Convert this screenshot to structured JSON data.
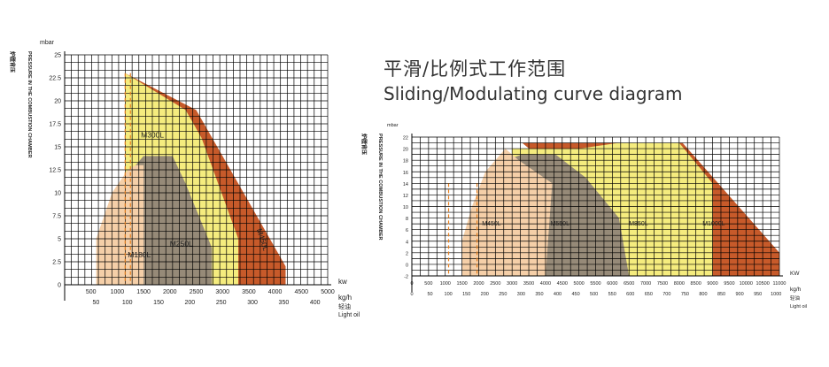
{
  "header": {
    "title_zh": "平滑/比例式工作范围",
    "title_en": "Sliding/Modulating curve diagram"
  },
  "chart_data": [
    {
      "type": "area",
      "title": "",
      "ylabel_unit": "mbar",
      "ylabel_zh": "炉膛背压",
      "ylabel_en": "PRESSURE IN THE COMBUSTION CHAMBER",
      "xlabel_kw": "kw",
      "xlabel_kgh": "kg/h",
      "xlabel_fuel_zh": "轻油",
      "xlabel_fuel_en": "Light oil",
      "xlim": [
        0,
        5000
      ],
      "ylim": [
        0,
        25
      ],
      "yticks": [
        "0",
        "2.5",
        "5",
        "7.5",
        "10",
        "12.5",
        "15",
        "17.5",
        "20",
        "22.5",
        "25"
      ],
      "xticks_kw": [
        "500",
        "1000",
        "1500",
        "2000",
        "2500",
        "3000",
        "3500",
        "4000",
        "4500",
        "5000"
      ],
      "xticks_kgh": [
        "50",
        "100",
        "150",
        "200",
        "250",
        "300",
        "350",
        "400"
      ],
      "grid": true,
      "series": [
        {
          "name": "M450L",
          "color": "#c75a2a",
          "points": [
            [
              1150,
              23
            ],
            [
              2500,
              19
            ],
            [
              3400,
              10
            ],
            [
              4200,
              2
            ],
            [
              4200,
              0
            ],
            [
              3300,
              0
            ],
            [
              2800,
              10
            ],
            [
              1150,
              23
            ]
          ]
        },
        {
          "name": "M300L",
          "color": "#f5ec7e",
          "points": [
            [
              1150,
              23
            ],
            [
              2300,
              19
            ],
            [
              2600,
              16
            ],
            [
              3300,
              5
            ],
            [
              3300,
              0
            ],
            [
              2800,
              0
            ],
            [
              1150,
              0
            ]
          ]
        },
        {
          "name": "M250L",
          "color": "#968a78",
          "points": [
            [
              1350,
              13
            ],
            [
              1500,
              14
            ],
            [
              2050,
              14
            ],
            [
              2300,
              11
            ],
            [
              2800,
              4
            ],
            [
              2800,
              0
            ],
            [
              1500,
              0
            ]
          ]
        },
        {
          "name": "M180L",
          "color": "#f5cfa8",
          "points": [
            [
              600,
              0
            ],
            [
              600,
              5
            ],
            [
              900,
              10
            ],
            [
              1200,
              12.5
            ],
            [
              1350,
              13
            ],
            [
              1500,
              13
            ],
            [
              1500,
              0
            ]
          ]
        }
      ],
      "labels": [
        "M300L",
        "M250L",
        "M180L",
        "M450L"
      ]
    },
    {
      "type": "area",
      "title": "",
      "ylabel_unit": "mbar",
      "ylabel_zh": "炉膛背压",
      "ylabel_en": "PRESSURE IN THE COMBUSTION CHAMBER",
      "xlabel_kw": "KW",
      "xlabel_kgh": "kg/h",
      "xlabel_fuel_zh": "轻油",
      "xlabel_fuel_en": "Light oil",
      "xlim": [
        0,
        11000
      ],
      "ylim": [
        -2,
        22
      ],
      "yticks": [
        "-2",
        "0",
        "2",
        "4",
        "6",
        "8",
        "10",
        "12",
        "14",
        "16",
        "18",
        "20",
        "22"
      ],
      "xticks_kw": [
        "0",
        "500",
        "1000",
        "1500",
        "2000",
        "2500",
        "3000",
        "3500",
        "4000",
        "4500",
        "5000",
        "5500",
        "6000",
        "6500",
        "7000",
        "7500",
        "8000",
        "8500",
        "9000",
        "9500",
        "10000",
        "10500",
        "11000"
      ],
      "xticks_kgh": [
        "0",
        "50",
        "100",
        "150",
        "200",
        "250",
        "300",
        "350",
        "400",
        "450",
        "500",
        "550",
        "600",
        "650",
        "700",
        "750",
        "800",
        "850",
        "900",
        "950",
        "1000"
      ],
      "grid": true,
      "series": [
        {
          "name": "M1000L",
          "color": "#c75a2a",
          "points": [
            [
              3300,
              21
            ],
            [
              8100,
              21
            ],
            [
              11000,
              2
            ],
            [
              11000,
              -2
            ],
            [
              8000,
              -2
            ],
            [
              6000,
              8
            ],
            [
              3300,
              21
            ]
          ]
        },
        {
          "name": "M850L",
          "color": "#f5ec7e",
          "points": [
            [
              3000,
              20
            ],
            [
              5000,
              20
            ],
            [
              6200,
              21
            ],
            [
              8000,
              21
            ],
            [
              9000,
              14
            ],
            [
              9000,
              -2
            ],
            [
              3000,
              -2
            ]
          ]
        },
        {
          "name": "M550L",
          "color": "#968a78",
          "points": [
            [
              2800,
              18
            ],
            [
              3300,
              19
            ],
            [
              4300,
              19
            ],
            [
              5200,
              15
            ],
            [
              6200,
              8
            ],
            [
              6500,
              -2
            ],
            [
              2800,
              -2
            ]
          ]
        },
        {
          "name": "M450L",
          "color": "#f5cfa8",
          "points": [
            [
              1500,
              -2
            ],
            [
              1500,
              4
            ],
            [
              1800,
              10
            ],
            [
              2200,
              16
            ],
            [
              2800,
              20
            ],
            [
              3200,
              18
            ],
            [
              4200,
              14
            ],
            [
              4000,
              -2
            ]
          ]
        }
      ],
      "labels": [
        "M450L",
        "M550L",
        "M850L",
        "M1000L"
      ]
    }
  ]
}
